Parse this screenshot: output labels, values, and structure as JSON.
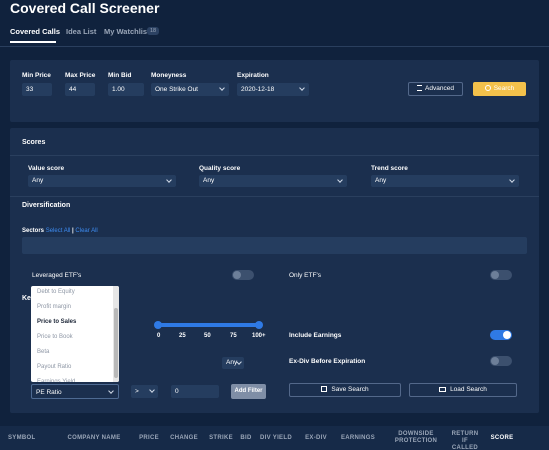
{
  "header": {
    "title": "Covered Call Screener"
  },
  "tabs": [
    {
      "label": "Covered Calls"
    },
    {
      "label": "Idea List"
    },
    {
      "label": "My Watchlist",
      "badge": "18"
    }
  ],
  "filters": [
    {
      "label": "Min Price",
      "value": "33"
    },
    {
      "label": "Max Price",
      "value": "44"
    },
    {
      "label": "Min Bid",
      "value": "1.00"
    },
    {
      "label": "Moneyness",
      "value": "One Strike Out"
    },
    {
      "label": "Expiration",
      "value": "2020-12-18"
    }
  ],
  "buttons": {
    "advanced": "Advanced",
    "search": "Search"
  },
  "scores": {
    "title": "Scores",
    "fields": [
      {
        "label": "Value score",
        "value": "Any"
      },
      {
        "label": "Quality score",
        "value": "Any"
      },
      {
        "label": "Trend score",
        "value": "Any"
      }
    ]
  },
  "diversification": {
    "title": "Diversification",
    "sectors_label": "Sectors",
    "select_all": "Select All",
    "separator": "|",
    "clear_all": "Clear All"
  },
  "toggles": [
    {
      "label": "Leveraged ETF's",
      "on": false
    },
    {
      "label": "Only ETF's",
      "on": false
    },
    {
      "label": "Include Earnings",
      "on": true
    },
    {
      "label": "Ex-Div Before Expiration",
      "on": false
    }
  ],
  "key_section": {
    "title": "Key",
    "dropdown": [
      "Debt to Equity",
      "Profit margin",
      "Price to Sales",
      "Price to Book",
      "Beta",
      "Payout Ratio",
      "Earnings Yield"
    ],
    "selected": 2,
    "slider_labels": [
      "0",
      "25",
      "50",
      "75",
      "100+"
    ],
    "any": "Any"
  },
  "filter_builder": {
    "metric": "PE Ratio",
    "operator": ">",
    "value": "0",
    "add": "Add Filter",
    "save": "Save Search",
    "load": "Load Search"
  },
  "table": {
    "columns": [
      "SYMBOL",
      "COMPANY NAME",
      "PRICE",
      "CHANGE",
      "STRIKE",
      "BID",
      "DIV YIELD",
      "EX-DIV",
      "EARNINGS",
      "DOWNSIDE PROTECTION",
      "RETURN IF CALLED",
      "SCORE"
    ]
  }
}
